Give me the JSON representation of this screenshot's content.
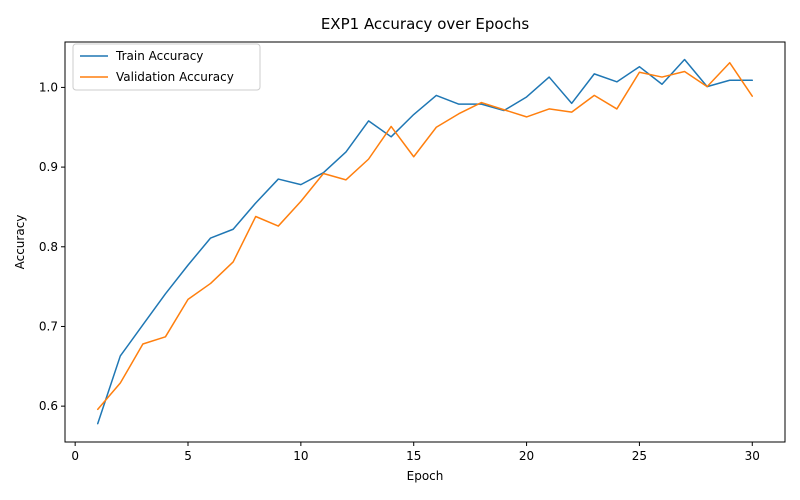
{
  "chart_data": {
    "type": "line",
    "title": "EXP1 Accuracy over Epochs",
    "xlabel": "Epoch",
    "ylabel": "Accuracy",
    "xlim": [
      -0.45,
      31.45
    ],
    "ylim": [
      0.555,
      1.057
    ],
    "xticks": [
      0,
      5,
      10,
      15,
      20,
      25,
      30
    ],
    "yticks": [
      0.6,
      0.7,
      0.8,
      0.9,
      1.0
    ],
    "xtick_labels": [
      "0",
      "5",
      "10",
      "15",
      "20",
      "25",
      "30"
    ],
    "ytick_labels": [
      "0.6",
      "0.7",
      "0.8",
      "0.9",
      "1.0"
    ],
    "grid": false,
    "legend_position": "top-left",
    "x": [
      1,
      2,
      3,
      4,
      5,
      6,
      7,
      8,
      9,
      10,
      11,
      12,
      13,
      14,
      15,
      16,
      17,
      18,
      19,
      20,
      21,
      22,
      23,
      24,
      25,
      26,
      27,
      28,
      29,
      30
    ],
    "series": [
      {
        "name": "Train Accuracy",
        "color": "#1f77b4",
        "values": [
          0.578,
          0.663,
          0.702,
          0.741,
          0.777,
          0.811,
          0.822,
          0.855,
          0.885,
          0.878,
          0.893,
          0.919,
          0.958,
          0.938,
          0.966,
          0.99,
          0.979,
          0.979,
          0.971,
          0.988,
          1.013,
          0.98,
          1.017,
          1.007,
          1.026,
          1.004,
          1.035,
          1.001,
          1.009,
          1.009
        ]
      },
      {
        "name": "Validation Accuracy",
        "color": "#ff7f0e",
        "values": [
          0.596,
          0.629,
          0.678,
          0.687,
          0.734,
          0.754,
          0.781,
          0.838,
          0.826,
          0.857,
          0.892,
          0.884,
          0.91,
          0.951,
          0.913,
          0.95,
          0.967,
          0.981,
          0.972,
          0.963,
          0.973,
          0.969,
          0.99,
          0.973,
          1.019,
          1.013,
          1.02,
          1.001,
          1.031,
          0.989
        ]
      }
    ]
  }
}
